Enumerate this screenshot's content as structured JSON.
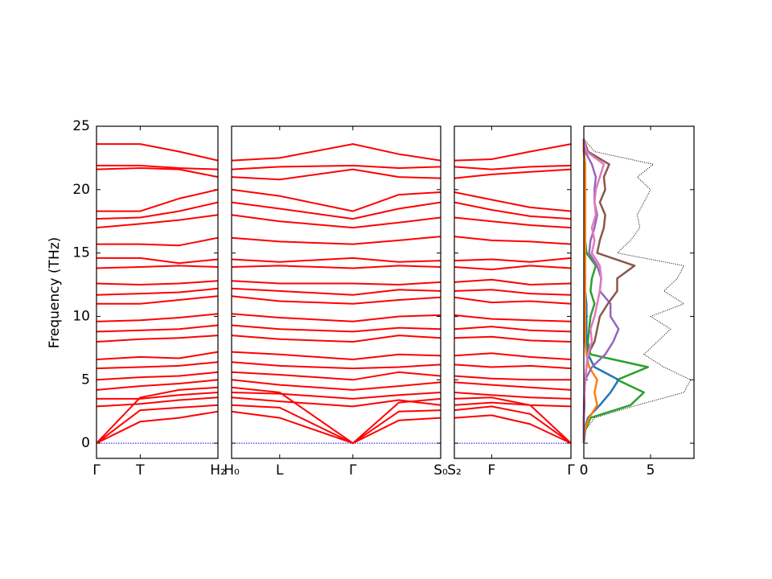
{
  "chart_data": [
    {
      "type": "line",
      "ylabel": "Frequency (THz)",
      "color": "#ff0000",
      "zero_line": {
        "value": 0,
        "color": "#0000ff"
      },
      "x": [
        0,
        0.36,
        0.68,
        1
      ],
      "xlim": [
        0,
        1
      ],
      "xticks": [
        {
          "value": 0,
          "label": "Γ"
        },
        {
          "value": 0.36,
          "label": "T"
        },
        {
          "value": 1,
          "label": "H₂"
        }
      ],
      "ylim": [
        -1.2,
        25
      ],
      "yticks": [
        0,
        5,
        10,
        15,
        20,
        25
      ],
      "series": [
        {
          "values": [
            0,
            1.7,
            2.0,
            2.5
          ]
        },
        {
          "values": [
            0,
            2.6,
            2.8,
            3.0
          ]
        },
        {
          "values": [
            0,
            3.6,
            4.2,
            4.4
          ]
        },
        {
          "values": [
            2.9,
            3.1,
            3.4,
            3.6
          ]
        },
        {
          "values": [
            3.5,
            3.5,
            3.8,
            4.0
          ]
        },
        {
          "values": [
            4.2,
            4.5,
            4.7,
            5.0
          ]
        },
        {
          "values": [
            5.0,
            5.2,
            5.3,
            5.6
          ]
        },
        {
          "values": [
            5.9,
            6.0,
            6.1,
            6.4
          ]
        },
        {
          "values": [
            6.6,
            6.8,
            6.7,
            7.2
          ]
        },
        {
          "values": [
            8.0,
            8.2,
            8.3,
            8.5
          ]
        },
        {
          "values": [
            8.8,
            8.9,
            9.0,
            9.3
          ]
        },
        {
          "values": [
            9.6,
            9.7,
            9.9,
            10.2
          ]
        },
        {
          "values": [
            11.0,
            11.0,
            11.3,
            11.6
          ]
        },
        {
          "values": [
            11.7,
            11.8,
            11.9,
            12.2
          ]
        },
        {
          "values": [
            12.6,
            12.5,
            12.6,
            12.8
          ]
        },
        {
          "values": [
            13.8,
            13.9,
            14.0,
            13.9
          ]
        },
        {
          "values": [
            14.6,
            14.6,
            14.2,
            14.5
          ]
        },
        {
          "values": [
            15.7,
            15.7,
            15.6,
            16.2
          ]
        },
        {
          "values": [
            17.0,
            17.3,
            17.6,
            18.0
          ]
        },
        {
          "values": [
            17.7,
            17.8,
            18.3,
            19.0
          ]
        },
        {
          "values": [
            18.3,
            18.3,
            19.3,
            20.0
          ]
        },
        {
          "values": [
            21.6,
            21.7,
            21.6,
            21.0
          ]
        },
        {
          "values": [
            21.9,
            21.9,
            21.7,
            21.6
          ]
        },
        {
          "values": [
            23.6,
            23.6,
            23.0,
            22.3
          ]
        }
      ]
    },
    {
      "type": "line",
      "color": "#ff0000",
      "zero_line": {
        "value": 0,
        "color": "#0000ff"
      },
      "x": [
        0,
        0.23,
        0.58,
        0.8,
        1
      ],
      "xlim": [
        0,
        1
      ],
      "xticks": [
        {
          "value": 0,
          "label": "H₀"
        },
        {
          "value": 0.23,
          "label": "L"
        },
        {
          "value": 0.58,
          "label": "Γ"
        },
        {
          "value": 1,
          "label": "S₀"
        }
      ],
      "ylim": [
        -1.2,
        25
      ],
      "series": [
        {
          "values": [
            2.5,
            2.0,
            0,
            1.8,
            2.0
          ]
        },
        {
          "values": [
            3.0,
            2.8,
            0,
            2.5,
            2.6
          ]
        },
        {
          "values": [
            4.4,
            4.0,
            0,
            3.2,
            3.5
          ]
        },
        {
          "values": [
            3.6,
            3.3,
            2.9,
            3.4,
            3.0
          ]
        },
        {
          "values": [
            4.0,
            3.9,
            3.5,
            3.8,
            4.0
          ]
        },
        {
          "values": [
            5.0,
            4.6,
            4.2,
            4.5,
            4.8
          ]
        },
        {
          "values": [
            5.6,
            5.4,
            5.0,
            5.6,
            5.3
          ]
        },
        {
          "values": [
            6.4,
            6.1,
            5.9,
            6.0,
            6.2
          ]
        },
        {
          "values": [
            7.2,
            7.0,
            6.6,
            7.0,
            6.9
          ]
        },
        {
          "values": [
            8.5,
            8.2,
            8.0,
            8.5,
            8.3
          ]
        },
        {
          "values": [
            9.3,
            9.0,
            8.8,
            9.1,
            9.0
          ]
        },
        {
          "values": [
            10.2,
            9.9,
            9.6,
            10.0,
            10.1
          ]
        },
        {
          "values": [
            11.6,
            11.2,
            11.0,
            11.3,
            11.5
          ]
        },
        {
          "values": [
            12.2,
            12.0,
            11.7,
            12.1,
            12.0
          ]
        },
        {
          "values": [
            12.8,
            12.6,
            12.6,
            12.5,
            12.7
          ]
        },
        {
          "values": [
            13.9,
            14.0,
            13.8,
            14.0,
            13.9
          ]
        },
        {
          "values": [
            14.5,
            14.3,
            14.6,
            14.3,
            14.4
          ]
        },
        {
          "values": [
            16.2,
            15.9,
            15.7,
            16.0,
            16.3
          ]
        },
        {
          "values": [
            18.0,
            17.5,
            17.0,
            17.4,
            17.8
          ]
        },
        {
          "values": [
            19.0,
            18.5,
            17.7,
            18.5,
            19.0
          ]
        },
        {
          "values": [
            20.0,
            19.5,
            18.3,
            19.6,
            19.8
          ]
        },
        {
          "values": [
            21.0,
            20.8,
            21.6,
            21.0,
            20.9
          ]
        },
        {
          "values": [
            21.6,
            21.8,
            21.9,
            21.7,
            21.8
          ]
        },
        {
          "values": [
            22.3,
            22.5,
            23.6,
            22.8,
            22.3
          ]
        }
      ]
    },
    {
      "type": "line",
      "color": "#ff0000",
      "zero_line": {
        "value": 0,
        "color": "#0000ff"
      },
      "x": [
        0,
        0.32,
        0.65,
        1
      ],
      "xlim": [
        0,
        1
      ],
      "xticks": [
        {
          "value": 0,
          "label": "S₂"
        },
        {
          "value": 0.32,
          "label": "F"
        },
        {
          "value": 1,
          "label": "Γ"
        }
      ],
      "ylim": [
        -1.2,
        25
      ],
      "series": [
        {
          "values": [
            2.0,
            2.2,
            1.5,
            0
          ]
        },
        {
          "values": [
            2.6,
            2.9,
            2.3,
            0
          ]
        },
        {
          "values": [
            3.5,
            3.6,
            3.0,
            0
          ]
        },
        {
          "values": [
            3.0,
            3.2,
            3.0,
            2.9
          ]
        },
        {
          "values": [
            4.0,
            3.8,
            3.6,
            3.5
          ]
        },
        {
          "values": [
            4.8,
            4.6,
            4.4,
            4.2
          ]
        },
        {
          "values": [
            5.3,
            5.1,
            5.0,
            5.0
          ]
        },
        {
          "values": [
            6.2,
            6.0,
            6.1,
            5.9
          ]
        },
        {
          "values": [
            6.9,
            7.1,
            6.8,
            6.6
          ]
        },
        {
          "values": [
            8.3,
            8.4,
            8.1,
            8.0
          ]
        },
        {
          "values": [
            9.0,
            9.2,
            8.9,
            8.8
          ]
        },
        {
          "values": [
            10.1,
            9.8,
            9.7,
            9.6
          ]
        },
        {
          "values": [
            11.5,
            11.1,
            11.2,
            11.0
          ]
        },
        {
          "values": [
            12.0,
            12.1,
            11.8,
            11.7
          ]
        },
        {
          "values": [
            12.7,
            12.9,
            12.5,
            12.6
          ]
        },
        {
          "values": [
            13.9,
            13.7,
            14.0,
            13.8
          ]
        },
        {
          "values": [
            14.4,
            14.5,
            14.3,
            14.6
          ]
        },
        {
          "values": [
            16.3,
            16.0,
            15.9,
            15.7
          ]
        },
        {
          "values": [
            17.8,
            17.5,
            17.2,
            17.0
          ]
        },
        {
          "values": [
            19.0,
            18.4,
            17.9,
            17.7
          ]
        },
        {
          "values": [
            19.8,
            19.2,
            18.6,
            18.3
          ]
        },
        {
          "values": [
            20.9,
            21.2,
            21.4,
            21.6
          ]
        },
        {
          "values": [
            21.8,
            21.6,
            21.8,
            21.9
          ]
        },
        {
          "values": [
            22.3,
            22.4,
            23.0,
            23.6
          ]
        }
      ]
    },
    {
      "type": "line",
      "orientation": "horizontal",
      "y": [
        0,
        1,
        2,
        3,
        4,
        5,
        6,
        7,
        8,
        9,
        10,
        11,
        12,
        13,
        14,
        15,
        16,
        17,
        18,
        19,
        20,
        21,
        22,
        23,
        24
      ],
      "xlim": [
        0,
        8.25
      ],
      "xticks": [
        0,
        5
      ],
      "ylim": [
        -1.2,
        25
      ],
      "series": [
        {
          "color": "#000000",
          "style": "dotted",
          "values": [
            0,
            0.1,
            0.8,
            4.0,
            7.5,
            8.0,
            6.0,
            4.5,
            5.5,
            6.5,
            5.0,
            7.5,
            6.0,
            7.0,
            7.5,
            2.5,
            3.5,
            4.2,
            4.0,
            4.5,
            5.0,
            4.0,
            5.2,
            0.8,
            0
          ]
        },
        {
          "color": "#2ca02c",
          "style": "solid",
          "values": [
            0,
            0.1,
            0.5,
            3.5,
            4.5,
            2.5,
            4.8,
            0.5,
            0.3,
            0.4,
            0.5,
            0.8,
            0.5,
            0.6,
            0.9,
            0.2,
            0.1,
            0.1,
            0.1,
            0.05,
            0.05,
            0.05,
            0.05,
            0.05,
            0
          ]
        },
        {
          "color": "#1f77b4",
          "style": "solid",
          "values": [
            0,
            0.05,
            0.3,
            1.2,
            2.0,
            2.6,
            0.8,
            0.3,
            0.2,
            0.2,
            0.2,
            0.2,
            0.1,
            0.1,
            0.1,
            0.1,
            0.1,
            0.1,
            0.1,
            0.1,
            0.1,
            0.1,
            0.1,
            0,
            0
          ]
        },
        {
          "color": "#ff7f0e",
          "style": "solid",
          "values": [
            0,
            0.05,
            0.4,
            1.0,
            0.8,
            1.0,
            0.4,
            0.2,
            0.1,
            0.1,
            0.1,
            0.1,
            0.1,
            0.1,
            0.1,
            0.1,
            0.1,
            0.1,
            0.1,
            0.1,
            0.1,
            0.1,
            0.1,
            0,
            0
          ]
        },
        {
          "color": "#9467bd",
          "style": "solid",
          "values": [
            0,
            0,
            0,
            0.05,
            0.05,
            0.1,
            0.6,
            1.6,
            2.2,
            2.6,
            2.0,
            2.0,
            1.2,
            1.3,
            1.0,
            0.4,
            0.5,
            0.8,
            1.0,
            0.8,
            0.8,
            0.9,
            0.6,
            0.1,
            0
          ]
        },
        {
          "color": "#8c564b",
          "style": "solid",
          "values": [
            0,
            0,
            0,
            0.05,
            0.05,
            0.1,
            0.2,
            0.3,
            0.8,
            1.0,
            1.2,
            1.8,
            2.5,
            2.5,
            3.8,
            1.0,
            1.2,
            1.5,
            1.6,
            1.2,
            1.6,
            1.5,
            1.9,
            0.3,
            0
          ]
        },
        {
          "color": "#e377c2",
          "style": "solid",
          "values": [
            0,
            0,
            0,
            0,
            0.05,
            0.1,
            0.2,
            0.3,
            0.6,
            0.5,
            0.8,
            1.0,
            1.2,
            1.3,
            1.2,
            0.6,
            0.8,
            0.6,
            0.9,
            0.8,
            0.9,
            1.2,
            1.5,
            0.2,
            0
          ]
        }
      ]
    }
  ]
}
